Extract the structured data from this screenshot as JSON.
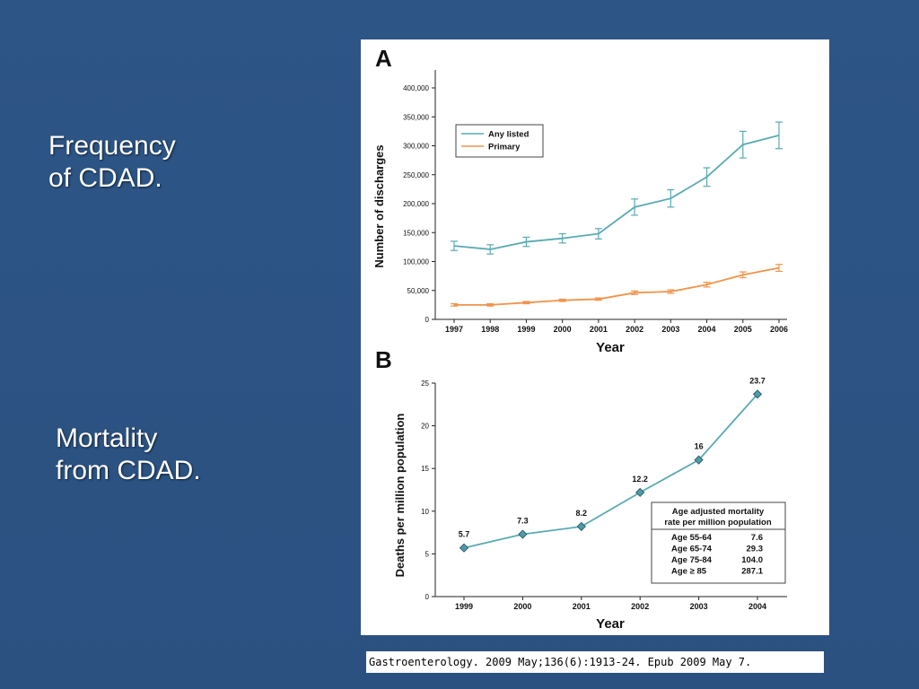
{
  "slide": {
    "label_freq": [
      "Frequency",
      "of CDAD."
    ],
    "label_mort": [
      "Mortality",
      "from CDAD."
    ],
    "citation": "Gastroenterology. 2009 May;136(6):1913-24. Epub 2009 May 7."
  },
  "chart_data": [
    {
      "panel": "A",
      "type": "line",
      "xlabel": "Year",
      "ylabel": "Number of discharges",
      "categories": [
        "1997",
        "1998",
        "1999",
        "2000",
        "2001",
        "2002",
        "2003",
        "2004",
        "2005",
        "2006"
      ],
      "ylim": [
        0,
        400000
      ],
      "yticks": [
        0,
        50000,
        100000,
        150000,
        200000,
        250000,
        300000,
        350000,
        400000
      ],
      "ytick_labels": [
        "0",
        "50,000",
        "100,000",
        "150,000",
        "200,000",
        "250,000",
        "300,000",
        "350,000",
        "400,000"
      ],
      "legend_position": "top-left",
      "series": [
        {
          "name": "Any listed",
          "color": "#5aaab2",
          "values": [
            127000,
            121000,
            134000,
            140000,
            148000,
            194000,
            209000,
            246000,
            302000,
            318000
          ],
          "error": [
            8000,
            8000,
            8000,
            8000,
            9000,
            14000,
            15000,
            16000,
            23000,
            23000
          ]
        },
        {
          "name": "Primary",
          "color": "#f0944a",
          "values": [
            25000,
            25000,
            29000,
            33000,
            35000,
            46000,
            48000,
            60000,
            77000,
            89000
          ],
          "error": [
            2000,
            2000,
            2000,
            2000,
            2000,
            3000,
            3000,
            4000,
            5000,
            6000
          ]
        }
      ]
    },
    {
      "panel": "B",
      "type": "line",
      "xlabel": "Year",
      "ylabel": "Deaths per million population",
      "categories": [
        "1999",
        "2000",
        "2001",
        "2002",
        "2003",
        "2004"
      ],
      "ylim": [
        0,
        25
      ],
      "yticks": [
        0,
        5,
        10,
        15,
        20,
        25
      ],
      "ytick_labels": [
        "0",
        "5",
        "10",
        "15",
        "20",
        "25"
      ],
      "series": [
        {
          "name": "",
          "color": "#5aaab2",
          "marker_color": "#4f9aa6",
          "values": [
            5.7,
            7.3,
            8.2,
            12.2,
            16,
            23.7
          ],
          "data_labels": [
            "5.7",
            "7.3",
            "8.2",
            "12.2",
            "16",
            "23.7"
          ]
        }
      ],
      "inset_table": {
        "title": [
          "Age adjusted mortality",
          "rate per million population"
        ],
        "rows": [
          [
            "Age 55-64",
            "7.6"
          ],
          [
            "Age 65-74",
            "29.3"
          ],
          [
            "Age 75-84",
            "104.0"
          ],
          [
            "Age ≥ 85",
            "287.1"
          ]
        ]
      }
    }
  ]
}
